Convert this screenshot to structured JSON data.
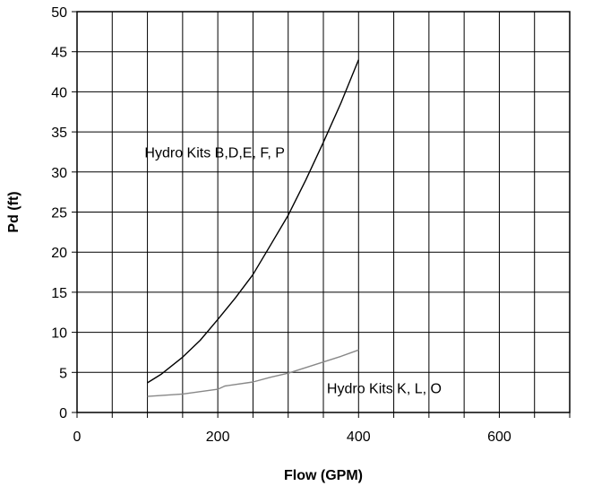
{
  "chart_data": {
    "type": "line",
    "title": "",
    "xlabel": "Flow (GPM)",
    "ylabel": "Pd (ft)",
    "xlim": [
      0,
      700
    ],
    "ylim": [
      0,
      50
    ],
    "x_ticks": [
      0,
      200,
      400,
      600
    ],
    "x_tick_labels": [
      "0",
      "200",
      "400",
      "600"
    ],
    "x_grid_step": 50,
    "y_ticks": [
      0,
      5,
      10,
      15,
      20,
      25,
      30,
      35,
      40,
      45,
      50
    ],
    "y_tick_labels": [
      "0",
      "5",
      "10",
      "15",
      "20",
      "25",
      "30",
      "35",
      "40",
      "45",
      "50"
    ],
    "grid": true,
    "series": [
      {
        "name": "Hydro Kits B,D,E, F, P",
        "color": "#000000",
        "x": [
          100,
          120,
          150,
          175,
          200,
          225,
          250,
          275,
          300,
          325,
          350,
          375,
          400
        ],
        "y": [
          3.7,
          4.8,
          6.9,
          9.0,
          11.6,
          14.3,
          17.2,
          20.9,
          24.6,
          29.0,
          33.7,
          38.6,
          44.0
        ]
      },
      {
        "name": "Hydro Kits K, L, O",
        "color": "#888888",
        "x": [
          100,
          150,
          200,
          210,
          250,
          275,
          300,
          325,
          350,
          375,
          400
        ],
        "y": [
          2.0,
          2.3,
          2.9,
          3.3,
          3.8,
          4.4,
          4.9,
          5.6,
          6.3,
          7.0,
          7.8
        ]
      }
    ],
    "annotations": [
      {
        "text": "Hydro Kits B,D,E, F, P",
        "x": 96,
        "y": 31.8
      },
      {
        "text": "Hydro Kits K, L, O",
        "x": 355,
        "y": 2.4
      }
    ]
  }
}
